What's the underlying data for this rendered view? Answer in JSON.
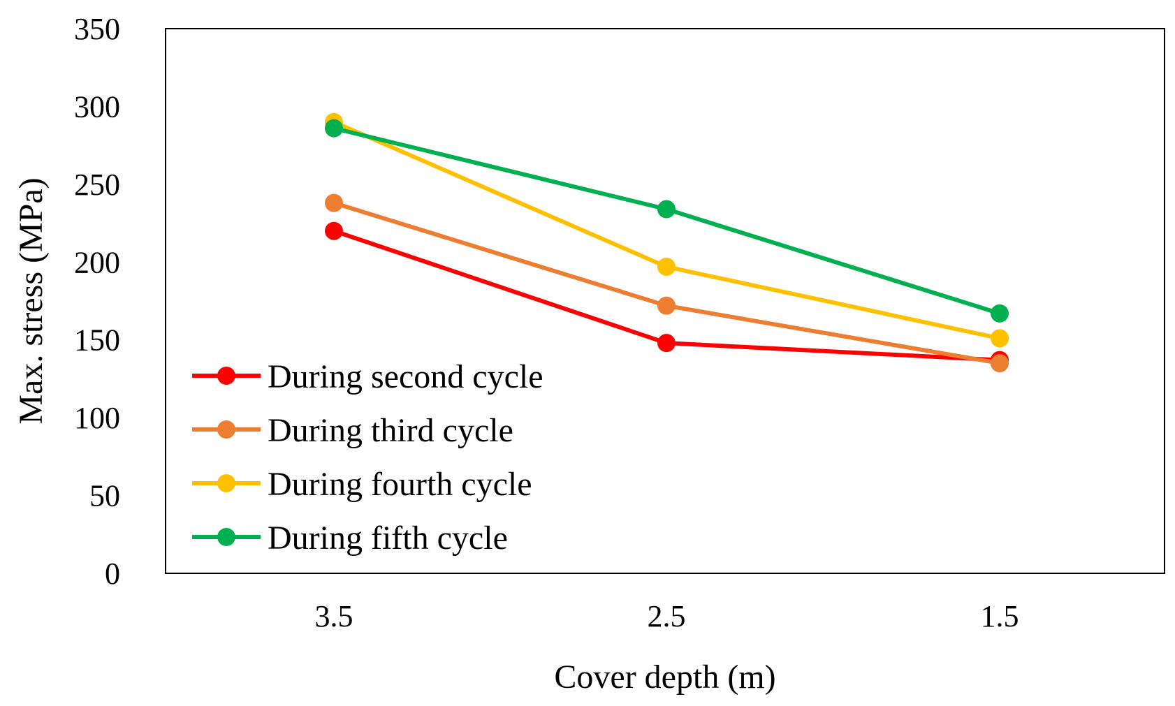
{
  "chart_data": {
    "type": "line",
    "title": "",
    "xlabel": "Cover depth (m)",
    "ylabel": "Max. stress (MPa)",
    "categories": [
      "3.5",
      "2.5",
      "1.5"
    ],
    "ylim": [
      0,
      350
    ],
    "yticks": [
      0,
      50,
      100,
      150,
      200,
      250,
      300,
      350
    ],
    "grid": false,
    "legend_position": "bottom-left",
    "series": [
      {
        "name": "During second cycle",
        "color": "#ff0000",
        "values": [
          220,
          148,
          137
        ]
      },
      {
        "name": "During third cycle",
        "color": "#ed7d31",
        "values": [
          238,
          172,
          135
        ]
      },
      {
        "name": "During fourth cycle",
        "color": "#ffc000",
        "values": [
          290,
          197,
          151
        ]
      },
      {
        "name": "During fifth cycle",
        "color": "#00b050",
        "values": [
          286,
          234,
          167
        ]
      }
    ]
  }
}
